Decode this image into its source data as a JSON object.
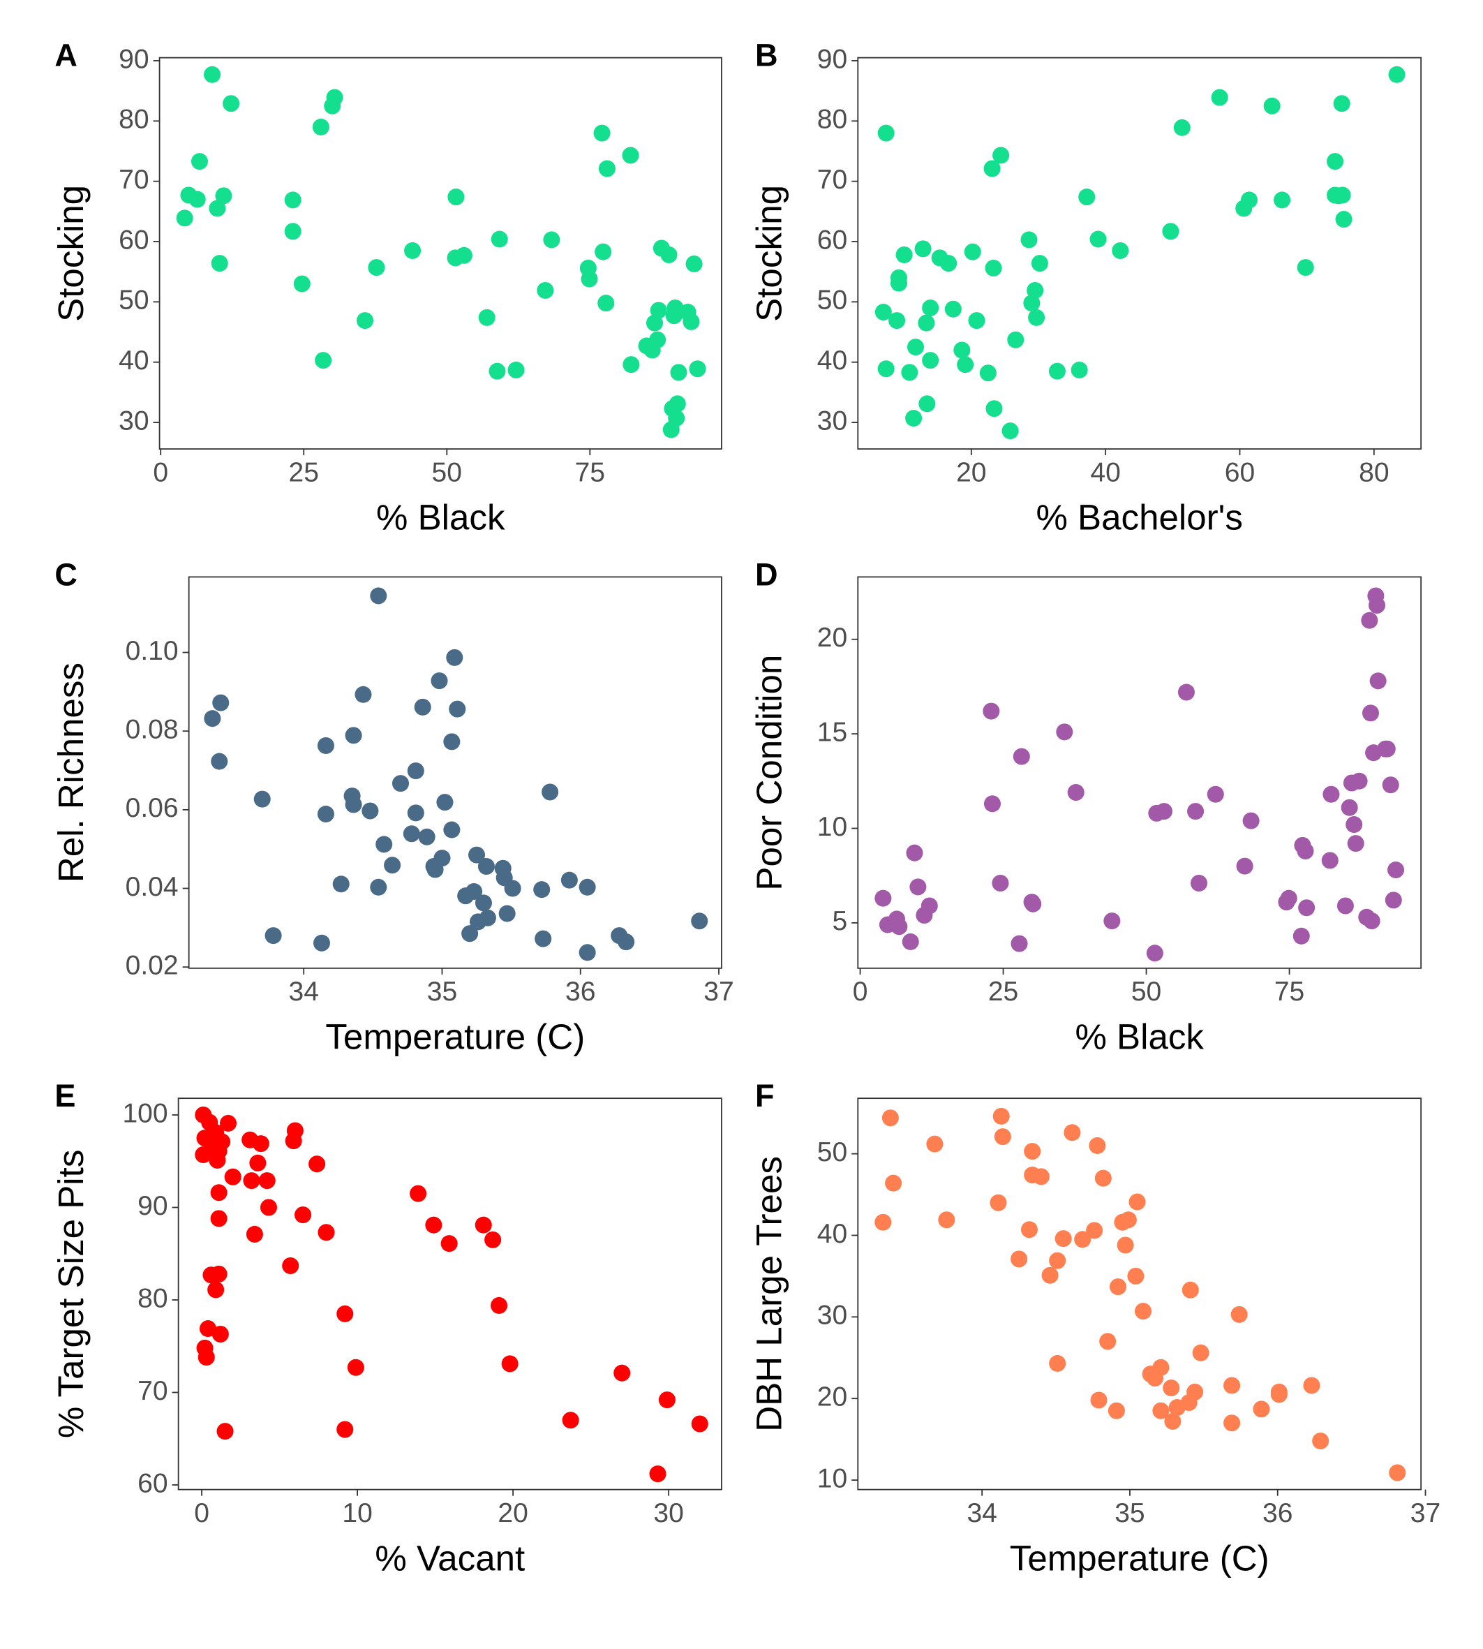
{
  "chart_data": [
    {
      "type": "scatter",
      "panel_label": "A",
      "x_label": "% Black",
      "y_label": "Stocking",
      "color": "#14df8f",
      "xlim": [
        -0.2,
        98
      ],
      "ylim": [
        25.6,
        90.5
      ],
      "xticks": [
        0,
        25,
        50,
        75
      ],
      "yticks": [
        30,
        40,
        50,
        60,
        70,
        80,
        90
      ],
      "x": [
        4.2,
        4.9,
        6.8,
        6.4,
        9,
        9.9,
        10.3,
        11,
        12.3,
        23.1,
        23.1,
        24.7,
        28,
        28.4,
        30,
        30.4,
        35.7,
        37.7,
        44,
        51.5,
        51.6,
        53,
        57,
        59.2,
        58.8,
        62.1,
        67.2,
        68.3,
        74.7,
        74.9,
        77.1,
        77.3,
        77.8,
        78,
        82.1,
        82.2,
        84.9,
        85.9,
        86.3,
        86.8,
        87,
        87.5,
        88.8,
        89.2,
        89.4,
        89.7,
        89.9,
        90.1,
        90.3,
        90.5,
        92.1,
        92.7,
        93.2,
        93.8
      ],
      "values": [
        63.9,
        67.7,
        73.3,
        67,
        87.7,
        65.5,
        56.4,
        67.6,
        82.9,
        66.9,
        61.7,
        53,
        79,
        40.3,
        82.5,
        83.9,
        46.9,
        55.7,
        58.5,
        57.3,
        67.4,
        57.7,
        47.4,
        60.4,
        38.5,
        38.7,
        51.9,
        60.3,
        55.6,
        53.8,
        78,
        58.3,
        49.8,
        72.1,
        74.3,
        39.6,
        42.7,
        42,
        46.5,
        43.7,
        48.6,
        58.9,
        57.8,
        28.8,
        32.3,
        47.7,
        49,
        30.7,
        33.1,
        38.3,
        48.3,
        46.7,
        56.3,
        38.9
      ]
    },
    {
      "type": "scatter",
      "panel_label": "B",
      "x_label": "% Bachelor's",
      "y_label": "Stocking",
      "color": "#14df8f",
      "xlim": [
        3.1,
        87
      ],
      "ylim": [
        25.6,
        90.5
      ],
      "xticks": [
        20,
        40,
        60,
        80
      ],
      "yticks": [
        30,
        40,
        50,
        60,
        70,
        80,
        90
      ],
      "x": [
        7.3,
        6.9,
        7.3,
        8.9,
        9.2,
        9.2,
        10,
        10.8,
        11.4,
        11.7,
        12.8,
        13.3,
        13.4,
        13.9,
        13.9,
        15.3,
        16.6,
        17.3,
        18.6,
        19.1,
        20.2,
        20.8,
        22.5,
        23.1,
        23.3,
        23.4,
        24.4,
        25.8,
        26.6,
        28.6,
        29,
        29.5,
        29.7,
        30.2,
        32.8,
        36.1,
        37.2,
        38.9,
        42.2,
        49.7,
        51.4,
        57,
        60.6,
        61.4,
        64.8,
        66.3,
        69.8,
        74.2,
        74.2,
        74.7,
        75.2,
        75.3,
        75.5,
        83.4
      ],
      "values": [
        78,
        48.3,
        38.9,
        46.9,
        54,
        53.1,
        57.8,
        38.3,
        30.7,
        42.5,
        58.8,
        46.5,
        33.1,
        49,
        40.3,
        57.3,
        56.4,
        48.8,
        42,
        39.6,
        58.3,
        46.9,
        38.2,
        72.1,
        55.6,
        32.3,
        74.3,
        28.6,
        43.7,
        60.3,
        49.8,
        51.9,
        47.4,
        56.4,
        38.5,
        38.7,
        67.4,
        60.4,
        58.5,
        61.7,
        78.9,
        83.9,
        65.5,
        66.9,
        82.5,
        66.9,
        55.7,
        73.3,
        67.7,
        67.6,
        82.9,
        67.7,
        63.7,
        87.7
      ]
    },
    {
      "type": "scatter",
      "panel_label": "C",
      "x_label": "Temperature (C)",
      "y_label": "Rel. Richness",
      "color": "#4a6b87",
      "xlim": [
        33.17,
        37.02
      ],
      "ylim": [
        0.0197,
        0.1192
      ],
      "xticks": [
        34,
        35,
        36,
        37
      ],
      "yticks": [
        0.02,
        0.04,
        0.06,
        0.08,
        {
          "value": 0.1,
          "label": "0.10"
        }
      ],
      "x": [
        33.34,
        33.4,
        33.39,
        33.7,
        33.78,
        34.13,
        34.16,
        34.16,
        34.27,
        34.36,
        34.36,
        34.35,
        34.43,
        34.48,
        34.54,
        34.54,
        34.58,
        34.64,
        34.7,
        34.78,
        34.81,
        34.81,
        34.86,
        34.89,
        34.94,
        34.95,
        34.98,
        35,
        35.02,
        35.07,
        35.07,
        35.09,
        35.11,
        35.17,
        35.2,
        35.23,
        35.25,
        35.26,
        35.3,
        35.32,
        35.33,
        35.44,
        35.45,
        35.47,
        35.51,
        35.73,
        35.72,
        35.78,
        35.92,
        36.05,
        36.05,
        36.28,
        36.33,
        36.86
      ],
      "values": [
        0.0832,
        0.0872,
        0.0723,
        0.0627,
        0.028,
        0.0261,
        0.0763,
        0.0589,
        0.0411,
        0.0613,
        0.0789,
        0.0635,
        0.0893,
        0.0597,
        0.1144,
        0.0403,
        0.0512,
        0.0459,
        0.0667,
        0.0539,
        0.0699,
        0.0592,
        0.0861,
        0.0531,
        0.0456,
        0.0448,
        0.0928,
        0.0477,
        0.0619,
        0.0549,
        0.0773,
        0.0987,
        0.0856,
        0.0381,
        0.0285,
        0.0392,
        0.0485,
        0.0315,
        0.0363,
        0.0456,
        0.0325,
        0.0451,
        0.0427,
        0.0336,
        0.04,
        0.0272,
        0.0397,
        0.0645,
        0.0421,
        0.0403,
        0.0237,
        0.028,
        0.0264,
        0.0317
      ]
    },
    {
      "type": "scatter",
      "panel_label": "D",
      "x_label": "% Black",
      "y_label": "Poor Condition",
      "color": "#a25aa8",
      "xlim": [
        -0.4,
        98
      ],
      "ylim": [
        2.6,
        23.3
      ],
      "xticks": [
        0,
        25,
        50,
        75
      ],
      "yticks": [
        5,
        10,
        15,
        20
      ],
      "x": [
        4,
        4.8,
        6.4,
        6.8,
        8.8,
        9.5,
        10.1,
        11.2,
        12.1,
        22.9,
        23.1,
        24.5,
        27.8,
        28.2,
        30,
        30.2,
        35.7,
        37.7,
        44,
        51.5,
        51.8,
        53.1,
        57,
        58.6,
        59.2,
        62.1,
        67.2,
        68.3,
        74.5,
        74.9,
        77.1,
        77.3,
        77.8,
        78,
        82.1,
        82.3,
        84.8,
        85.5,
        85.9,
        86.3,
        86.6,
        87.2,
        88.5,
        89,
        89.2,
        89.4,
        89.7,
        90.1,
        90.3,
        90.5,
        91.8,
        92.1,
        92.7,
        93.2,
        93.6
      ],
      "values": [
        6.3,
        4.9,
        5.2,
        4.8,
        4,
        8.7,
        6.9,
        5.4,
        5.9,
        16.2,
        11.3,
        7.1,
        3.9,
        13.8,
        6.1,
        6,
        15.1,
        11.9,
        5.1,
        3.4,
        10.8,
        10.9,
        17.2,
        10.9,
        7.1,
        11.8,
        8,
        10.4,
        6.1,
        6.3,
        4.3,
        9.1,
        8.8,
        5.8,
        8.3,
        11.8,
        5.9,
        11.1,
        12.4,
        10.2,
        9.2,
        12.5,
        5.3,
        21,
        16.1,
        5.1,
        14,
        22.3,
        21.8,
        17.8,
        14.2,
        14.2,
        12.3,
        6.2,
        7.8
      ]
    },
    {
      "type": "scatter",
      "panel_label": "E",
      "x_label": "% Vacant",
      "y_label": "% Target Size Pits",
      "color": "#ff0000",
      "xlim": [
        -1.5,
        33.4
      ],
      "ylim": [
        59.5,
        101.8
      ],
      "xticks": [
        0,
        10,
        20,
        30
      ],
      "yticks": [
        60,
        70,
        80,
        90,
        100
      ],
      "x": [
        0.1,
        0.1,
        0.2,
        0.2,
        0.3,
        0.4,
        0.5,
        0.5,
        0.6,
        0.7,
        0.9,
        0.9,
        1,
        1.1,
        1.1,
        1.1,
        1.1,
        1.2,
        1.3,
        1.5,
        1.7,
        2,
        3.1,
        3.2,
        3.4,
        3.6,
        3.8,
        4.2,
        4.3,
        5.7,
        5.9,
        6,
        6.5,
        7.4,
        8,
        9.2,
        9.2,
        9.9,
        13.9,
        14.9,
        15.9,
        18.1,
        18.7,
        19.1,
        19.8,
        23.7,
        27,
        29.9,
        29.3,
        32
      ],
      "values": [
        100,
        95.7,
        97.5,
        74.8,
        73.8,
        76.9,
        99.2,
        97.3,
        82.7,
        96.7,
        81.1,
        98.1,
        95.1,
        96.1,
        82.8,
        91.6,
        88.8,
        76.3,
        97.1,
        65.8,
        99.1,
        93.3,
        97.3,
        92.9,
        87.1,
        94.8,
        96.9,
        92.9,
        90,
        83.7,
        97.2,
        98.3,
        89.2,
        94.7,
        87.3,
        78.5,
        66,
        72.7,
        91.5,
        88.1,
        86.1,
        88.1,
        86.5,
        79.4,
        73.1,
        67,
        72.1,
        69.2,
        61.2,
        66.6
      ]
    },
    {
      "type": "scatter",
      "panel_label": "F",
      "x_label": "Temperature (C)",
      "y_label": "DBH Large Trees",
      "color": "#ff7f50",
      "xlim": [
        33.16,
        36.97
      ],
      "ylim": [
        8.84,
        56.8
      ],
      "xticks": [
        34,
        35,
        36,
        37
      ],
      "yticks": [
        10,
        20,
        30,
        40,
        50
      ],
      "x": [
        33.33,
        33.38,
        33.4,
        33.68,
        33.76,
        34.11,
        34.13,
        34.14,
        34.25,
        34.32,
        34.34,
        34.34,
        34.4,
        34.46,
        34.51,
        34.51,
        34.55,
        34.61,
        34.68,
        34.76,
        34.78,
        34.79,
        34.82,
        34.85,
        34.91,
        34.92,
        34.95,
        34.97,
        34.99,
        35.04,
        35.05,
        35.09,
        35.14,
        35.17,
        35.21,
        35.21,
        35.28,
        35.29,
        35.32,
        35.4,
        35.41,
        35.44,
        35.48,
        35.69,
        35.69,
        35.74,
        35.89,
        36.01,
        36.01,
        36.23,
        36.29,
        36.81
      ],
      "values": [
        41.6,
        54.4,
        46.4,
        51.2,
        41.9,
        44,
        54.6,
        52.1,
        37.1,
        40.7,
        50.3,
        47.4,
        47.2,
        35.1,
        36.9,
        24.3,
        39.6,
        52.6,
        39.5,
        40.6,
        51,
        19.8,
        47,
        27,
        18.5,
        33.7,
        41.6,
        38.8,
        41.9,
        35,
        44.1,
        30.7,
        23,
        22.5,
        23.8,
        18.5,
        21.3,
        17.2,
        18.9,
        19.5,
        33.3,
        20.8,
        25.6,
        21.6,
        17,
        30.3,
        18.7,
        20.8,
        20.5,
        21.6,
        14.8,
        10.9
      ]
    }
  ]
}
